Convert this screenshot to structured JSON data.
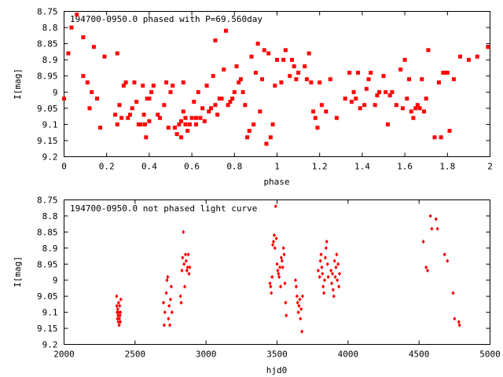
{
  "chart_data": [
    {
      "type": "scatter",
      "title": "194700-0950.0 phased with P=69.560day",
      "xlabel": "phase",
      "ylabel": "I[mag]",
      "xlim": [
        0,
        2
      ],
      "ylim": [
        9.2,
        8.75
      ],
      "y_inverted": true,
      "x_ticks": [
        "0",
        "0.2",
        "0.4",
        "0.6",
        "0.8",
        "1",
        "1.2",
        "1.4",
        "1.6",
        "1.8",
        "2"
      ],
      "y_ticks": [
        "8.75",
        "8.8",
        "8.85",
        "8.9",
        "8.95",
        "9",
        "9.05",
        "9.1",
        "9.15",
        "9.2"
      ],
      "marker": "filled-square",
      "color": "#ff0000",
      "points": [
        [
          0.0,
          9.02
        ],
        [
          0.02,
          8.88
        ],
        [
          0.035,
          8.8
        ],
        [
          0.06,
          8.76
        ],
        [
          0.09,
          8.95
        ],
        [
          0.09,
          8.83
        ],
        [
          0.11,
          8.97
        ],
        [
          0.12,
          9.05
        ],
        [
          0.13,
          9.0
        ],
        [
          0.14,
          8.86
        ],
        [
          0.155,
          9.02
        ],
        [
          0.17,
          9.11
        ],
        [
          0.19,
          8.89
        ],
        [
          0.24,
          9.07
        ],
        [
          0.25,
          9.1
        ],
        [
          0.25,
          8.88
        ],
        [
          0.26,
          9.04
        ],
        [
          0.27,
          9.08
        ],
        [
          0.28,
          8.98
        ],
        [
          0.29,
          8.97
        ],
        [
          0.3,
          9.08
        ],
        [
          0.31,
          9.07
        ],
        [
          0.32,
          9.05
        ],
        [
          0.33,
          8.97
        ],
        [
          0.34,
          9.03
        ],
        [
          0.35,
          9.1
        ],
        [
          0.36,
          9.1
        ],
        [
          0.37,
          8.98
        ],
        [
          0.375,
          9.07
        ],
        [
          0.38,
          9.1
        ],
        [
          0.385,
          9.14
        ],
        [
          0.39,
          9.02
        ],
        [
          0.4,
          9.09
        ],
        [
          0.4,
          9.02
        ],
        [
          0.41,
          9.0
        ],
        [
          0.42,
          8.98
        ],
        [
          0.44,
          9.07
        ],
        [
          0.45,
          9.08
        ],
        [
          0.47,
          9.04
        ],
        [
          0.48,
          8.97
        ],
        [
          0.49,
          9.11
        ],
        [
          0.5,
          9.0
        ],
        [
          0.51,
          8.98
        ],
        [
          0.52,
          9.11
        ],
        [
          0.52,
          9.11
        ],
        [
          0.53,
          9.13
        ],
        [
          0.54,
          9.1
        ],
        [
          0.55,
          9.14
        ],
        [
          0.55,
          9.09
        ],
        [
          0.56,
          8.97
        ],
        [
          0.56,
          9.06
        ],
        [
          0.57,
          9.08
        ],
        [
          0.57,
          9.1
        ],
        [
          0.58,
          9.12
        ],
        [
          0.59,
          9.1
        ],
        [
          0.6,
          9.08
        ],
        [
          0.61,
          9.03
        ],
        [
          0.62,
          9.1
        ],
        [
          0.62,
          9.08
        ],
        [
          0.63,
          9.0
        ],
        [
          0.64,
          9.08
        ],
        [
          0.65,
          9.05
        ],
        [
          0.66,
          9.09
        ],
        [
          0.67,
          8.98
        ],
        [
          0.68,
          9.06
        ],
        [
          0.69,
          9.05
        ],
        [
          0.7,
          8.95
        ],
        [
          0.71,
          8.84
        ],
        [
          0.71,
          9.04
        ],
        [
          0.72,
          9.07
        ],
        [
          0.73,
          9.02
        ],
        [
          0.74,
          9.02
        ],
        [
          0.75,
          8.93
        ],
        [
          0.76,
          8.81
        ],
        [
          0.77,
          9.04
        ],
        [
          0.78,
          9.03
        ],
        [
          0.79,
          9.02
        ],
        [
          0.8,
          9.0
        ],
        [
          0.81,
          8.92
        ],
        [
          0.82,
          8.97
        ],
        [
          0.83,
          8.96
        ],
        [
          0.84,
          9.0
        ],
        [
          0.85,
          9.04
        ],
        [
          0.86,
          9.14
        ],
        [
          0.87,
          9.12
        ],
        [
          0.88,
          8.89
        ],
        [
          0.89,
          9.1
        ],
        [
          0.9,
          8.94
        ],
        [
          0.91,
          8.85
        ],
        [
          0.92,
          9.06
        ],
        [
          0.93,
          8.96
        ],
        [
          0.94,
          8.87
        ],
        [
          0.95,
          9.16
        ],
        [
          0.96,
          8.88
        ],
        [
          0.97,
          9.14
        ],
        [
          0.98,
          9.1
        ],
        [
          0.99,
          8.98
        ],
        [
          1.0,
          8.9
        ],
        [
          1.02,
          8.97
        ],
        [
          1.03,
          8.9
        ],
        [
          1.04,
          8.87
        ],
        [
          1.06,
          8.95
        ],
        [
          1.07,
          8.9
        ],
        [
          1.08,
          8.92
        ],
        [
          1.09,
          8.96
        ],
        [
          1.1,
          8.94
        ],
        [
          1.13,
          8.92
        ],
        [
          1.14,
          8.96
        ],
        [
          1.15,
          8.88
        ],
        [
          1.16,
          8.97
        ],
        [
          1.17,
          9.06
        ],
        [
          1.18,
          9.08
        ],
        [
          1.19,
          9.11
        ],
        [
          1.2,
          8.97
        ],
        [
          1.21,
          9.04
        ],
        [
          1.23,
          9.06
        ],
        [
          1.25,
          8.96
        ],
        [
          1.28,
          9.08
        ],
        [
          1.32,
          9.02
        ],
        [
          1.34,
          8.94
        ],
        [
          1.35,
          9.03
        ],
        [
          1.36,
          9.0
        ],
        [
          1.37,
          9.02
        ],
        [
          1.38,
          8.94
        ],
        [
          1.39,
          9.05
        ],
        [
          1.41,
          9.04
        ],
        [
          1.42,
          8.99
        ],
        [
          1.43,
          8.96
        ],
        [
          1.44,
          8.94
        ],
        [
          1.46,
          9.04
        ],
        [
          1.47,
          9.01
        ],
        [
          1.48,
          9.0
        ],
        [
          1.5,
          8.95
        ],
        [
          1.51,
          9.0
        ],
        [
          1.52,
          9.1
        ],
        [
          1.53,
          9.01
        ],
        [
          1.54,
          9.0
        ],
        [
          1.56,
          9.04
        ],
        [
          1.58,
          8.93
        ],
        [
          1.59,
          9.05
        ],
        [
          1.6,
          8.9
        ],
        [
          1.61,
          9.02
        ],
        [
          1.62,
          8.96
        ],
        [
          1.63,
          9.06
        ],
        [
          1.64,
          9.08
        ],
        [
          1.65,
          9.05
        ],
        [
          1.66,
          9.04
        ],
        [
          1.67,
          9.05
        ],
        [
          1.68,
          8.96
        ],
        [
          1.69,
          9.06
        ],
        [
          1.7,
          9.02
        ],
        [
          1.71,
          8.87
        ],
        [
          1.74,
          9.14
        ],
        [
          1.76,
          8.97
        ],
        [
          1.77,
          9.14
        ],
        [
          1.78,
          8.94
        ],
        [
          1.79,
          8.94
        ],
        [
          1.8,
          8.94
        ],
        [
          1.81,
          9.12
        ],
        [
          1.83,
          8.96
        ],
        [
          1.86,
          8.89
        ],
        [
          1.9,
          8.9
        ],
        [
          1.94,
          8.89
        ],
        [
          1.99,
          8.86
        ]
      ]
    },
    {
      "type": "scatter",
      "title": "194700-0950.0 not phased light curve",
      "xlabel": "hjd0",
      "ylabel": "I[mag]",
      "xlim": [
        2000,
        5000
      ],
      "ylim": [
        9.2,
        8.75
      ],
      "y_inverted": true,
      "x_ticks": [
        "2000",
        "2500",
        "3000",
        "3500",
        "4000",
        "4500",
        "5000"
      ],
      "y_ticks": [
        "8.75",
        "8.8",
        "8.85",
        "8.9",
        "8.95",
        "9",
        "9.05",
        "9.1",
        "9.15",
        "9.2"
      ],
      "marker": "diamond",
      "color": "#ff0000",
      "points": [
        [
          2370,
          9.05
        ],
        [
          2372,
          9.08
        ],
        [
          2374,
          9.1
        ],
        [
          2376,
          9.12
        ],
        [
          2378,
          9.09
        ],
        [
          2380,
          9.11
        ],
        [
          2382,
          9.13
        ],
        [
          2384,
          9.07
        ],
        [
          2386,
          9.1
        ],
        [
          2388,
          9.14
        ],
        [
          2390,
          9.12
        ],
        [
          2392,
          9.08
        ],
        [
          2394,
          9.11
        ],
        [
          2396,
          9.13
        ],
        [
          2398,
          9.1
        ],
        [
          2400,
          9.06
        ],
        [
          2700,
          9.07
        ],
        [
          2705,
          9.14
        ],
        [
          2710,
          9.1
        ],
        [
          2720,
          9.04
        ],
        [
          2725,
          9.0
        ],
        [
          2730,
          8.99
        ],
        [
          2735,
          9.12
        ],
        [
          2740,
          9.08
        ],
        [
          2745,
          9.14
        ],
        [
          2750,
          9.06
        ],
        [
          2755,
          9.02
        ],
        [
          2760,
          9.1
        ],
        [
          2820,
          9.05
        ],
        [
          2825,
          9.07
        ],
        [
          2830,
          8.97
        ],
        [
          2835,
          8.93
        ],
        [
          2840,
          8.85
        ],
        [
          2845,
          8.95
        ],
        [
          2850,
          9.02
        ],
        [
          2855,
          8.92
        ],
        [
          2860,
          8.94
        ],
        [
          2865,
          8.97
        ],
        [
          2870,
          8.96
        ],
        [
          2875,
          8.92
        ],
        [
          2880,
          8.98
        ],
        [
          2885,
          8.96
        ],
        [
          3450,
          9.01
        ],
        [
          3455,
          9.02
        ],
        [
          3460,
          9.04
        ],
        [
          3465,
          8.99
        ],
        [
          3470,
          8.89
        ],
        [
          3475,
          8.88
        ],
        [
          3480,
          8.86
        ],
        [
          3485,
          8.9
        ],
        [
          3490,
          8.77
        ],
        [
          3495,
          8.87
        ],
        [
          3500,
          8.95
        ],
        [
          3505,
          8.97
        ],
        [
          3510,
          8.98
        ],
        [
          3515,
          8.99
        ],
        [
          3520,
          8.96
        ],
        [
          3525,
          9.02
        ],
        [
          3530,
          8.93
        ],
        [
          3535,
          8.94
        ],
        [
          3540,
          8.96
        ],
        [
          3545,
          8.9
        ],
        [
          3550,
          8.92
        ],
        [
          3555,
          9.01
        ],
        [
          3560,
          9.07
        ],
        [
          3565,
          9.11
        ],
        [
          3630,
          9.0
        ],
        [
          3635,
          9.02
        ],
        [
          3640,
          9.05
        ],
        [
          3645,
          9.07
        ],
        [
          3650,
          9.1
        ],
        [
          3655,
          9.08
        ],
        [
          3660,
          9.06
        ],
        [
          3665,
          9.12
        ],
        [
          3670,
          9.09
        ],
        [
          3675,
          9.16
        ],
        [
          3680,
          9.05
        ],
        [
          3790,
          8.97
        ],
        [
          3800,
          8.99
        ],
        [
          3805,
          8.94
        ],
        [
          3810,
          8.92
        ],
        [
          3815,
          8.96
        ],
        [
          3820,
          8.98
        ],
        [
          3825,
          9.02
        ],
        [
          3830,
          9.04
        ],
        [
          3835,
          9.0
        ],
        [
          3840,
          8.93
        ],
        [
          3845,
          8.9
        ],
        [
          3850,
          8.88
        ],
        [
          3855,
          8.95
        ],
        [
          3860,
          8.99
        ],
        [
          3880,
          8.97
        ],
        [
          3885,
          9.01
        ],
        [
          3890,
          8.98
        ],
        [
          3895,
          9.03
        ],
        [
          3900,
          9.05
        ],
        [
          3905,
          8.94
        ],
        [
          3910,
          8.99
        ],
        [
          3915,
          8.96
        ],
        [
          3920,
          8.92
        ],
        [
          3925,
          9.0
        ],
        [
          3930,
          8.95
        ],
        [
          3935,
          9.02
        ],
        [
          3940,
          8.98
        ],
        [
          4530,
          8.88
        ],
        [
          4550,
          8.96
        ],
        [
          4560,
          8.97
        ],
        [
          4580,
          8.8
        ],
        [
          4590,
          8.84
        ],
        [
          4620,
          8.81
        ],
        [
          4630,
          8.84
        ],
        [
          4680,
          8.92
        ],
        [
          4700,
          8.94
        ],
        [
          4740,
          9.04
        ],
        [
          4750,
          9.12
        ],
        [
          4780,
          9.13
        ],
        [
          4785,
          9.14
        ]
      ]
    }
  ]
}
